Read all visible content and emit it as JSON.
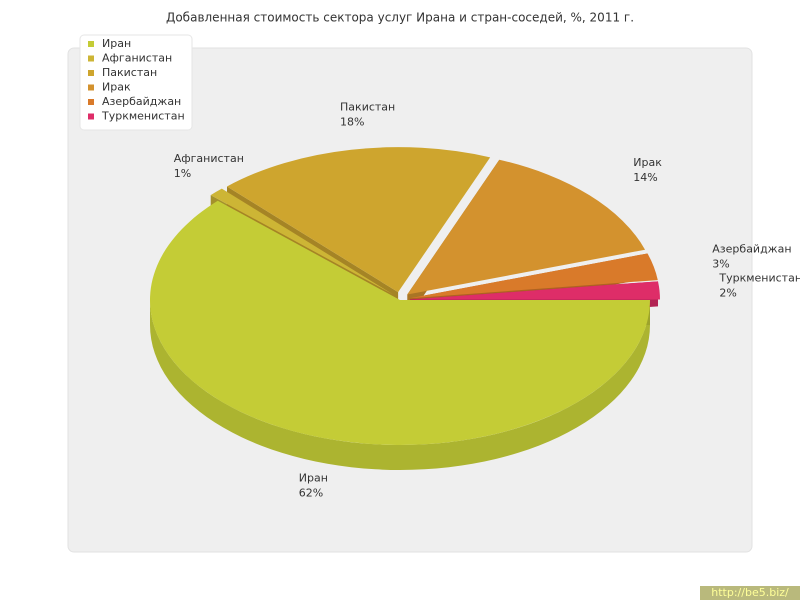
{
  "chart_data": {
    "type": "pie",
    "title": "Добавленная стоимость сектора услуг Ирана и стран-соседей, %, 2011 г.",
    "categories": [
      "Иран",
      "Афганистан",
      "Пакистан",
      "Ирак",
      "Азербайджан",
      "Туркменистан"
    ],
    "values": [
      62,
      1,
      18,
      14,
      3,
      2
    ],
    "value_labels": [
      "62%",
      "1%",
      "18%",
      "14%",
      "3%",
      "2%"
    ],
    "colors": [
      "#c4cc36",
      "#cdb535",
      "#cea52e",
      "#d3922e",
      "#d97a2a",
      "#de2d68"
    ],
    "legend": "top-left"
  },
  "watermark": "http://be5.biz/"
}
